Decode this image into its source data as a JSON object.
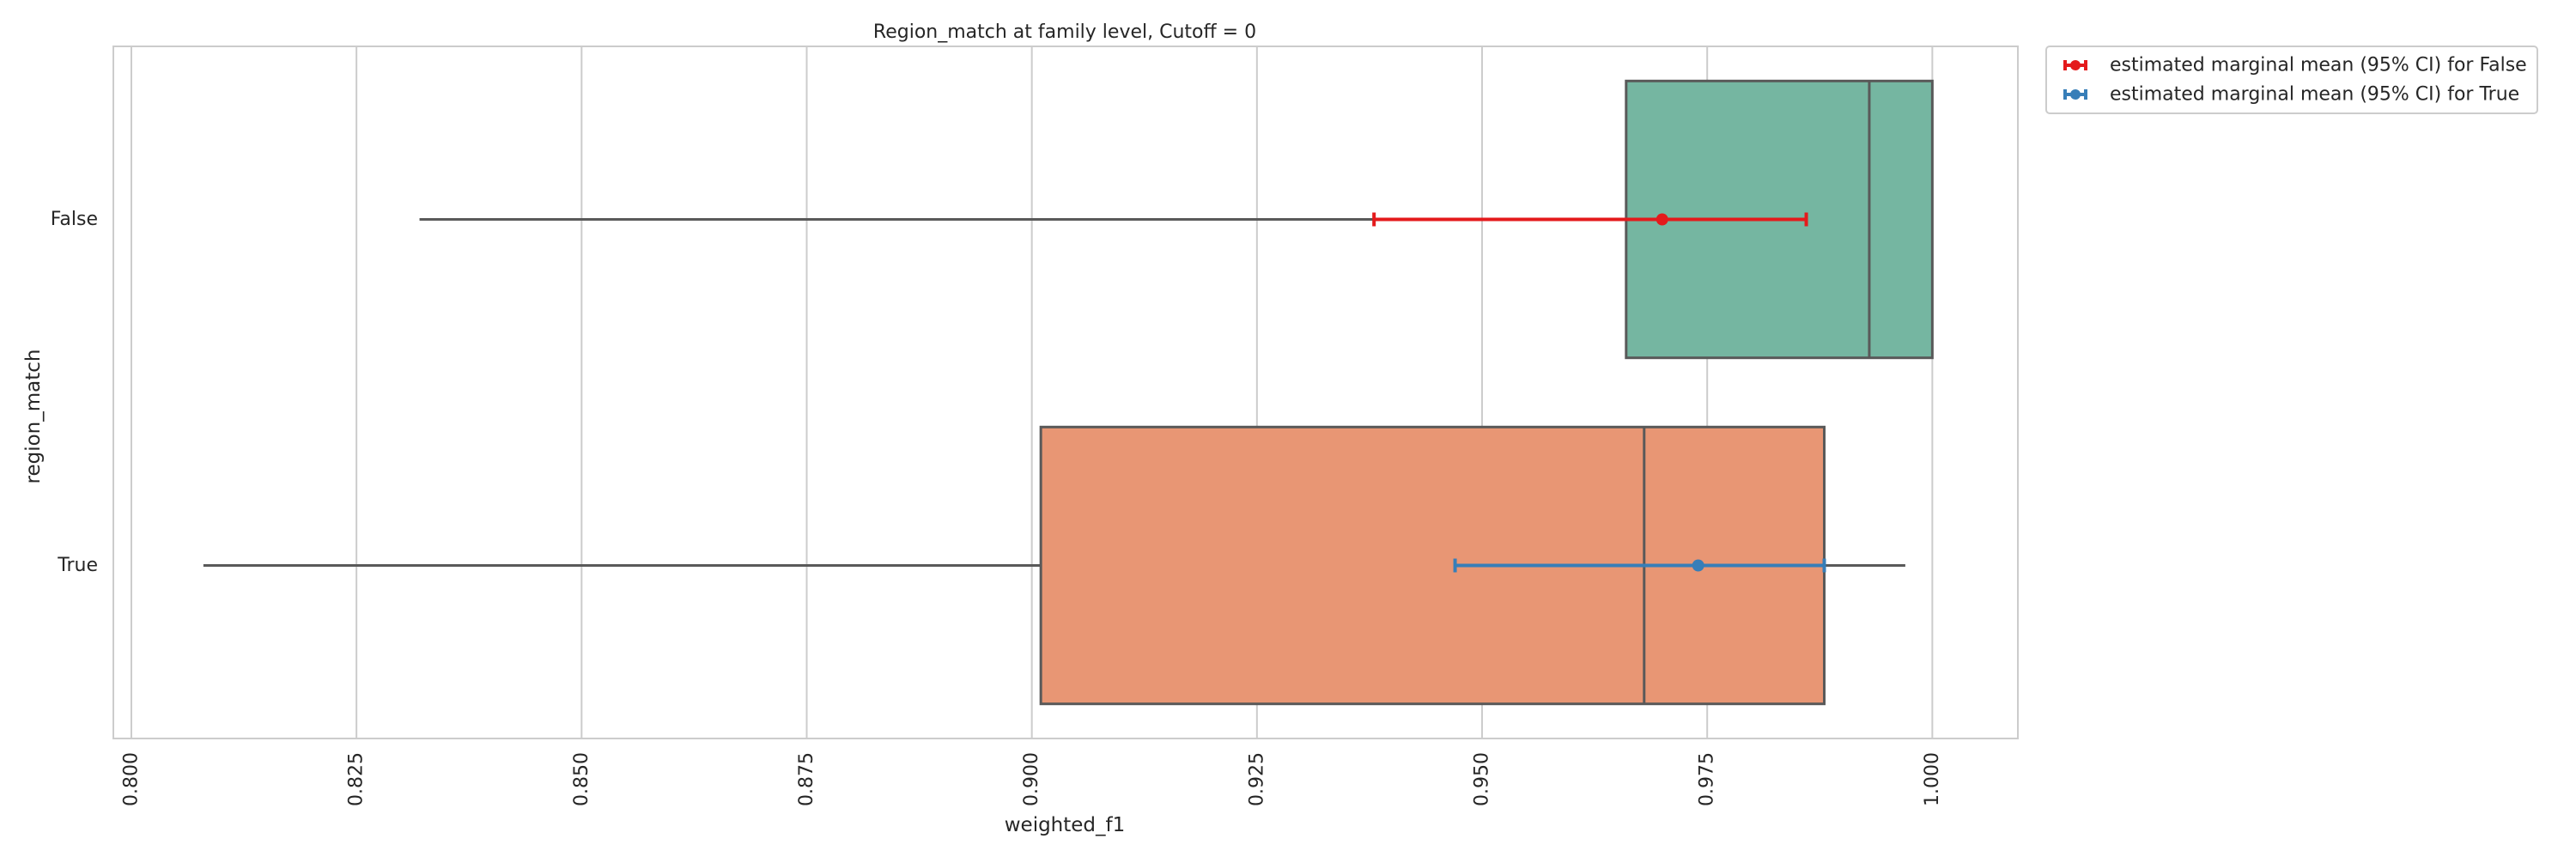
{
  "chart_data": {
    "type": "box",
    "title": "Region_match at family level, Cutoff = 0",
    "xlabel": "weighted_f1",
    "ylabel": "region_match",
    "orientation": "horizontal",
    "xlim": [
      0.798,
      1.0095
    ],
    "x_ticks": [
      "0.800",
      "0.825",
      "0.850",
      "0.875",
      "0.900",
      "0.925",
      "0.950",
      "0.975",
      "1.000"
    ],
    "x_tick_values": [
      0.8,
      0.825,
      0.85,
      0.875,
      0.9,
      0.925,
      0.95,
      0.975,
      1.0
    ],
    "grid": "vertical",
    "legend_position": "outside-top-right",
    "categories": [
      "False",
      "True"
    ],
    "boxes": [
      {
        "category": "False",
        "whisker_low": 0.832,
        "q1": 0.966,
        "median": 0.993,
        "q3": 1.0,
        "whisker_high": 1.0,
        "color": "#75b6a1"
      },
      {
        "category": "True",
        "whisker_low": 0.808,
        "q1": 0.901,
        "median": 0.968,
        "q3": 0.988,
        "whisker_high": 0.997,
        "color": "#e89674"
      }
    ],
    "marginal_means": [
      {
        "name": "estimated marginal mean (95% CI) for False",
        "category": "False",
        "mean": 0.97,
        "ci_low": 0.938,
        "ci_high": 0.986,
        "color": "#e41a1c"
      },
      {
        "name": "estimated marginal mean (95% CI) for True",
        "category": "True",
        "mean": 0.974,
        "ci_low": 0.947,
        "ci_high": 0.988,
        "color": "#377eb8"
      }
    ]
  }
}
